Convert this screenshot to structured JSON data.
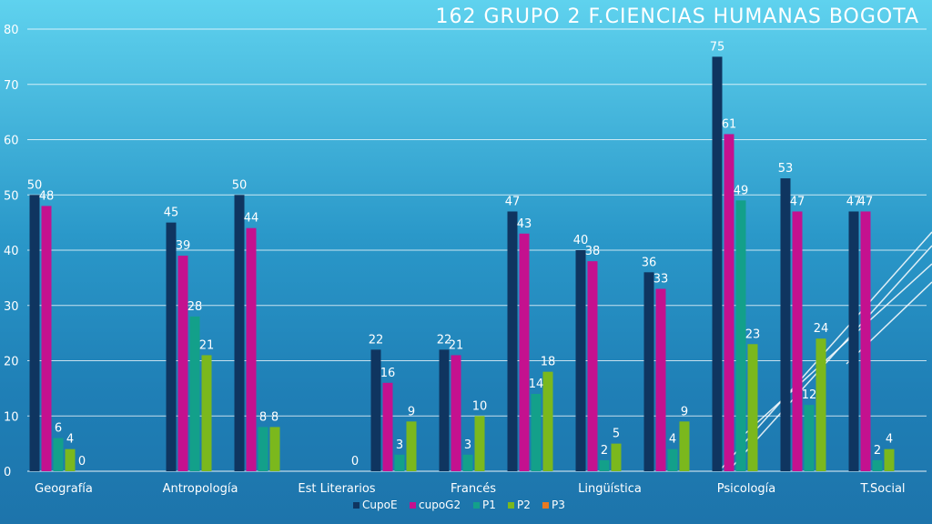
{
  "chart_data": {
    "type": "bar",
    "title": "162  GRUPO 2  F.CIENCIAS HUMANAS  BOGOTA",
    "categories": [
      "Geografía",
      "Antropología",
      "Est Literarios",
      "Francés",
      "Lingüística",
      "Psicología",
      "T.Social"
    ],
    "ylim": [
      0,
      80
    ],
    "yticks": [
      0,
      10,
      20,
      30,
      40,
      50,
      60,
      70,
      80
    ],
    "grid": true,
    "legend_position": "bottom",
    "bar_groups": [
      {
        "category_index": 0,
        "values": {
          "CupoE": 50,
          "cupoG2": 48,
          "P1": 6,
          "P2": 4,
          "P3": 0
        }
      },
      {
        "category_index": 0.65,
        "values": {}
      },
      {
        "category_index": 1,
        "values": {
          "CupoE": 45,
          "cupoG2": 39,
          "P1": 28,
          "P2": 21
        }
      },
      {
        "category_index": 1.5,
        "values": {
          "CupoE": 50,
          "cupoG2": 44,
          "P1": 8,
          "P2": 8
        }
      },
      {
        "category_index": 2,
        "values": {
          "P3": 0
        }
      },
      {
        "category_index": 2.5,
        "values": {
          "CupoE": 22,
          "cupoG2": 16,
          "P1": 3,
          "P2": 9
        }
      },
      {
        "category_index": 3,
        "values": {
          "CupoE": 22,
          "cupoG2": 21,
          "P1": 3,
          "P2": 10
        }
      },
      {
        "category_index": 3.5,
        "values": {
          "CupoE": 47,
          "cupoG2": 43,
          "P1": 14,
          "P2": 18
        }
      },
      {
        "category_index": 4,
        "values": {
          "CupoE": 40,
          "cupoG2": 38,
          "P1": 2,
          "P2": 5
        }
      },
      {
        "category_index": 4.5,
        "values": {
          "CupoE": 36,
          "cupoG2": 33,
          "P1": 4,
          "P2": 9
        }
      },
      {
        "category_index": 5,
        "values": {
          "CupoE": 75,
          "cupoG2": 61,
          "P1": 49,
          "P2": 23
        }
      },
      {
        "category_index": 5.5,
        "values": {
          "CupoE": 53,
          "cupoG2": 47,
          "P1": 12,
          "P2": 24
        }
      },
      {
        "category_index": 6,
        "values": {
          "CupoE": 47,
          "cupoG2": 47,
          "P1": 2,
          "P2": 4
        }
      }
    ],
    "series": [
      {
        "name": "CupoE",
        "color": "#0f3560"
      },
      {
        "name": "cupoG2",
        "color": "#c4118f"
      },
      {
        "name": "P1",
        "color": "#13a08a"
      },
      {
        "name": "P2",
        "color": "#7bb81d"
      },
      {
        "name": "P3",
        "color": "#e87a22"
      }
    ]
  }
}
